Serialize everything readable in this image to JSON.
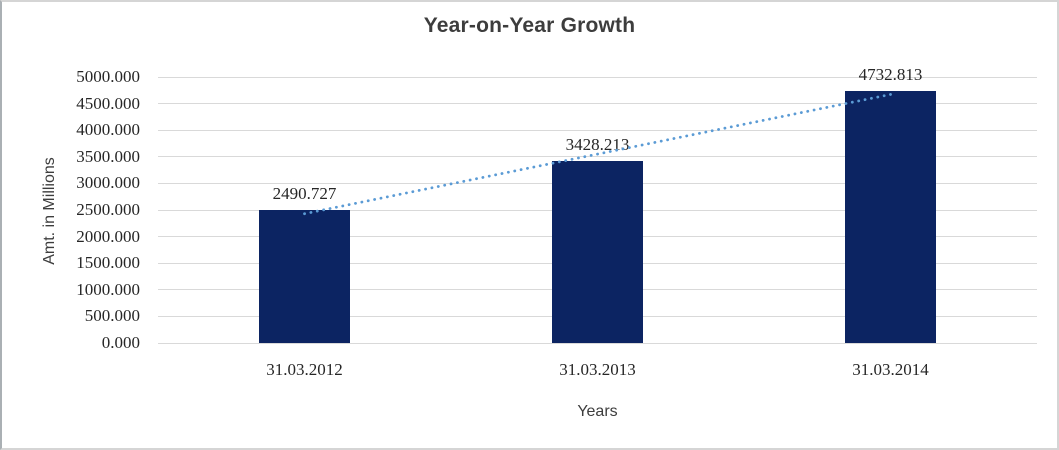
{
  "chart_data": {
    "type": "bar",
    "title": "Year-on-Year Growth",
    "categories": [
      "31.03.2012",
      "31.03.2013",
      "31.03.2014"
    ],
    "values": [
      2490.727,
      3428.213,
      4732.813
    ],
    "data_labels": [
      "2490.727",
      "3428.213",
      "4732.813"
    ],
    "xlabel": "Years",
    "ylabel": "Amt. in Millions",
    "ylim": [
      0,
      5000
    ],
    "ytick_step": 500,
    "ytick_labels": [
      "0.000",
      "500.000",
      "1000.000",
      "1500.000",
      "2000.000",
      "2500.000",
      "3000.000",
      "3500.000",
      "4000.000",
      "4500.000",
      "5000.000"
    ],
    "grid": true,
    "legend": false,
    "trendline": {
      "style": "dotted",
      "fit": "linear",
      "color": "#5b9bd5"
    },
    "colors": {
      "bar": "#0c2462",
      "gridline": "#d9d9d9",
      "tick_text": "#262626",
      "title_text": "#3d3d3d",
      "frame_border": "#d5d5d5"
    }
  }
}
